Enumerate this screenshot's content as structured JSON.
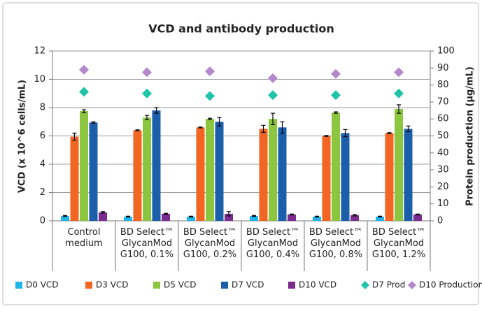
{
  "chart_data": {
    "type": "bar",
    "title": "VCD and antibody production",
    "ylabel": "VCD (x 10^6 cells/mL)",
    "y2label": "Protein production (µg/mL)",
    "categories": [
      "Control\nmedium",
      "BD Select™\nGlycanMod\nG100, 0.1%",
      "BD Select™\nGlycanMod\nG100, 0.2%",
      "BD Select™\nGlycanMod\nG100, 0.4%",
      "BD Select™\nGlycanMod\nG100, 0.8%",
      "BD Select™\nGlycanMod\nG100, 1.2%"
    ],
    "ylim": [
      0,
      12
    ],
    "yticks": [
      0,
      2,
      4,
      6,
      8,
      10,
      12
    ],
    "y2lim": [
      0,
      100
    ],
    "y2ticks": [
      0,
      10,
      20,
      30,
      40,
      50,
      60,
      70,
      80,
      90,
      100
    ],
    "grid": true,
    "legend": "bottom",
    "series": [
      {
        "name": "D0 VCD",
        "type": "bar",
        "color": "#1fb5e9",
        "values": [
          0.35,
          0.3,
          0.3,
          0.35,
          0.3,
          0.3
        ],
        "errors": [
          0.03,
          0.03,
          0.03,
          0.03,
          0.03,
          0.03
        ]
      },
      {
        "name": "D3 VCD",
        "type": "bar",
        "color": "#f26522",
        "values": [
          5.95,
          6.4,
          6.6,
          6.5,
          6.0,
          6.2
        ],
        "errors": [
          0.25,
          0.03,
          0.03,
          0.25,
          0.03,
          0.03
        ]
      },
      {
        "name": "D5 VCD",
        "type": "bar",
        "color": "#8cc63f",
        "values": [
          7.75,
          7.3,
          7.2,
          7.2,
          7.65,
          7.9
        ],
        "errors": [
          0.1,
          0.15,
          0.05,
          0.4,
          0.05,
          0.3
        ]
      },
      {
        "name": "D7 VCD",
        "type": "bar",
        "color": "#1b5fab",
        "values": [
          6.95,
          7.8,
          7.0,
          6.6,
          6.2,
          6.5
        ],
        "errors": [
          0.05,
          0.2,
          0.3,
          0.4,
          0.25,
          0.2
        ]
      },
      {
        "name": "D10 VCD",
        "type": "bar",
        "color": "#7b2c8f",
        "values": [
          0.6,
          0.5,
          0.5,
          0.45,
          0.4,
          0.45
        ],
        "errors": [
          0.05,
          0.03,
          0.15,
          0.03,
          0.05,
          0.03
        ]
      },
      {
        "name": "D7 Prod",
        "type": "scatter",
        "axis": "y2",
        "color": "#20c4a8",
        "values": [
          76,
          75,
          73.5,
          74,
          74,
          75
        ]
      },
      {
        "name": "D10 Production",
        "type": "scatter",
        "axis": "y2",
        "color": "#b389cc",
        "values": [
          89,
          87.5,
          88,
          84,
          86.5,
          87.5
        ]
      }
    ]
  }
}
